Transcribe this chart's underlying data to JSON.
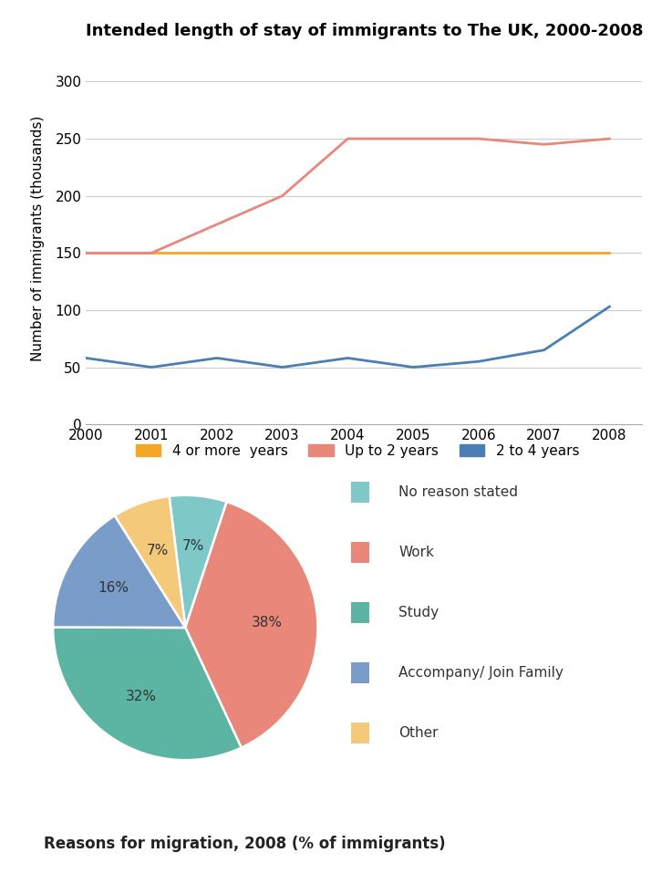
{
  "line_title": "Intended length of stay of immigrants to The UK, 2000-2008",
  "line_ylabel": "Number of immigrants (thousands)",
  "years": [
    2000,
    2001,
    2002,
    2003,
    2004,
    2005,
    2006,
    2007,
    2008
  ],
  "line_4more": [
    150,
    150,
    150,
    150,
    150,
    150,
    150,
    150,
    150
  ],
  "line_upto2": [
    150,
    150,
    175,
    200,
    250,
    250,
    250,
    245,
    250
  ],
  "line_2to4": [
    58,
    50,
    58,
    50,
    58,
    50,
    55,
    65,
    103
  ],
  "color_4more": "#f5a623",
  "color_upto2": "#e8877a",
  "color_2to4": "#4a7fb5",
  "legend_labels_line": [
    "4 or more  years",
    "Up to 2 years",
    "2 to 4 years"
  ],
  "ylim": [
    0,
    325
  ],
  "yticks": [
    0,
    50,
    100,
    150,
    200,
    250,
    300
  ],
  "pie_title": "Reasons for migration, 2008 (% of immigrants)",
  "pie_labels": [
    "No reason stated",
    "Work",
    "Study",
    "Accompany/ Join Family",
    "Other"
  ],
  "pie_values": [
    7,
    38,
    32,
    16,
    7
  ],
  "pie_colors": [
    "#7ec8c8",
    "#e8877a",
    "#5bb5a2",
    "#7a9cc9",
    "#f5c97a"
  ],
  "pie_pct_labels": [
    "7%",
    "38%",
    "32%",
    "16%",
    "7%"
  ],
  "background_color": "#ffffff"
}
